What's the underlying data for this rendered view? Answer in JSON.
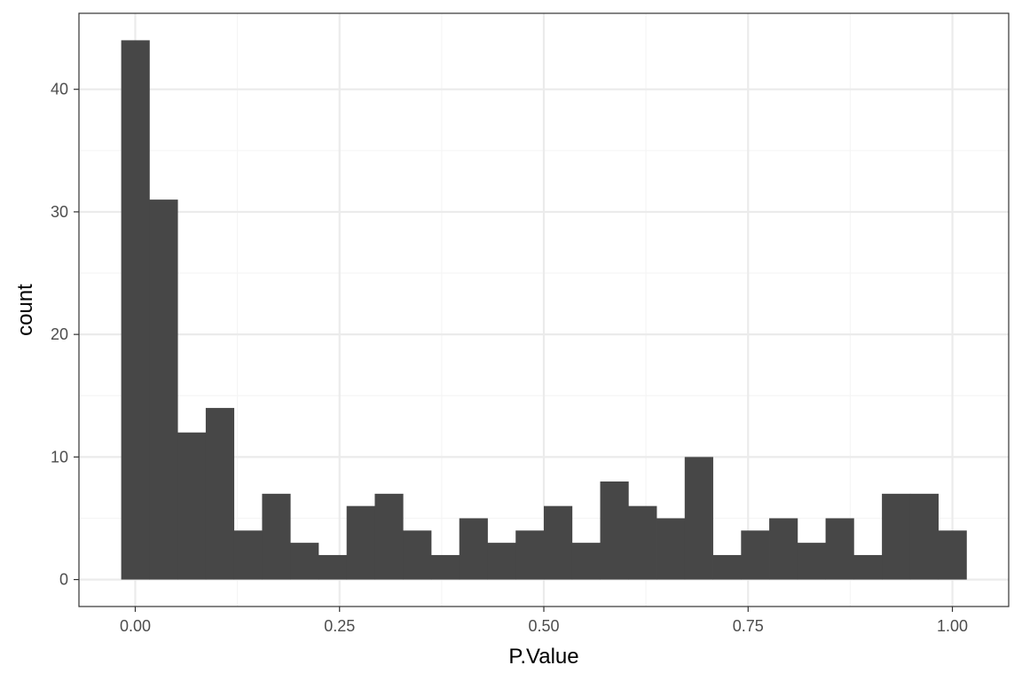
{
  "chart_data": {
    "type": "bar",
    "subtype": "histogram",
    "title": "",
    "xlabel": "P.Value",
    "ylabel": "count",
    "bins": 30,
    "x_range": [
      -0.0172,
      1.0172
    ],
    "xlim": [
      -0.0689,
      1.0689
    ],
    "ylim": [
      -2.2,
      46.2
    ],
    "x_ticks": [
      {
        "value": 0.0,
        "label": "0.00"
      },
      {
        "value": 0.25,
        "label": "0.25"
      },
      {
        "value": 0.5,
        "label": "0.50"
      },
      {
        "value": 0.75,
        "label": "0.75"
      },
      {
        "value": 1.0,
        "label": "1.00"
      }
    ],
    "y_ticks": [
      {
        "value": 0,
        "label": "0"
      },
      {
        "value": 10,
        "label": "10"
      },
      {
        "value": 20,
        "label": "20"
      },
      {
        "value": 30,
        "label": "30"
      },
      {
        "value": 40,
        "label": "40"
      }
    ],
    "values": [
      44,
      31,
      12,
      14,
      4,
      7,
      3,
      2,
      6,
      7,
      4,
      2,
      5,
      3,
      4,
      6,
      3,
      8,
      6,
      5,
      10,
      2,
      4,
      5,
      3,
      5,
      2,
      7,
      7,
      4
    ],
    "grid": true,
    "theme": "bw",
    "colors": {
      "bar": "#474747",
      "grid_major": "#ebebeb",
      "grid_minor": "#f5f5f5",
      "panel_border": "#333333",
      "tick_label": "#4d4d4d",
      "axis_title": "#000000"
    }
  }
}
